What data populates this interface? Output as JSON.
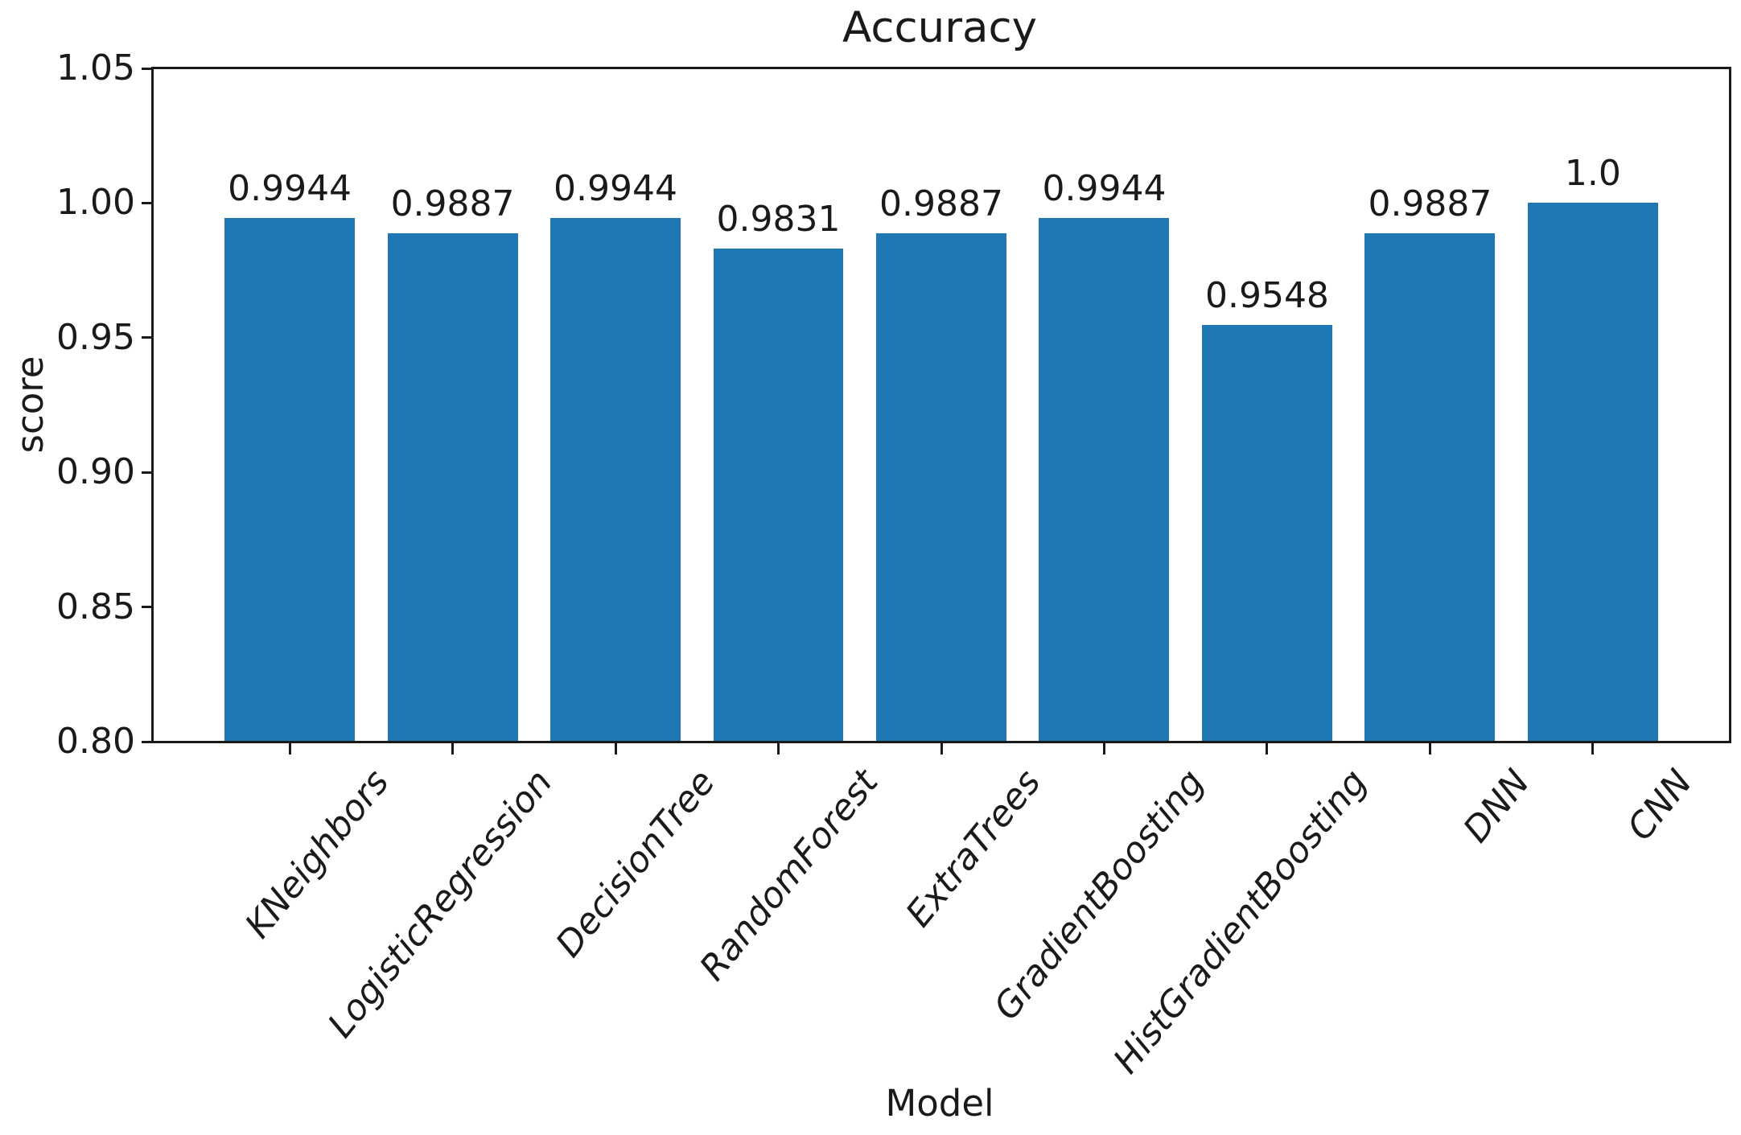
{
  "chart_data": {
    "type": "bar",
    "title": "Accuracy",
    "xlabel": "Model",
    "ylabel": "score",
    "categories": [
      "KNeighbors",
      "LogisticRegression",
      "DecisionTree",
      "RandomForest",
      "ExtraTrees",
      "GradientBoosting",
      "HistGradientBoosting",
      "DNN",
      "CNN"
    ],
    "values": [
      0.9944,
      0.9887,
      0.9944,
      0.9831,
      0.9887,
      0.9944,
      0.9548,
      0.9887,
      1.0
    ],
    "value_labels": [
      "0.9944",
      "0.9887",
      "0.9944",
      "0.9831",
      "0.9887",
      "0.9944",
      "0.9548",
      "0.9887",
      "1.0"
    ],
    "ylim": [
      0.8,
      1.05
    ],
    "yticks": [
      {
        "value": 0.8,
        "label": "0.80"
      },
      {
        "value": 0.85,
        "label": "0.85"
      },
      {
        "value": 0.9,
        "label": "0.90"
      },
      {
        "value": 0.95,
        "label": "0.95"
      },
      {
        "value": 1.0,
        "label": "1.00"
      },
      {
        "value": 1.05,
        "label": "1.05"
      }
    ],
    "bar_color": "#1f77b4",
    "axis_color": "#1a1a1a",
    "text_color": "#1a1a1a",
    "background": "#ffffff",
    "grid": false,
    "legend_position": "none",
    "xtick_rotation_deg": 51,
    "xtick_font_style": "italic"
  }
}
